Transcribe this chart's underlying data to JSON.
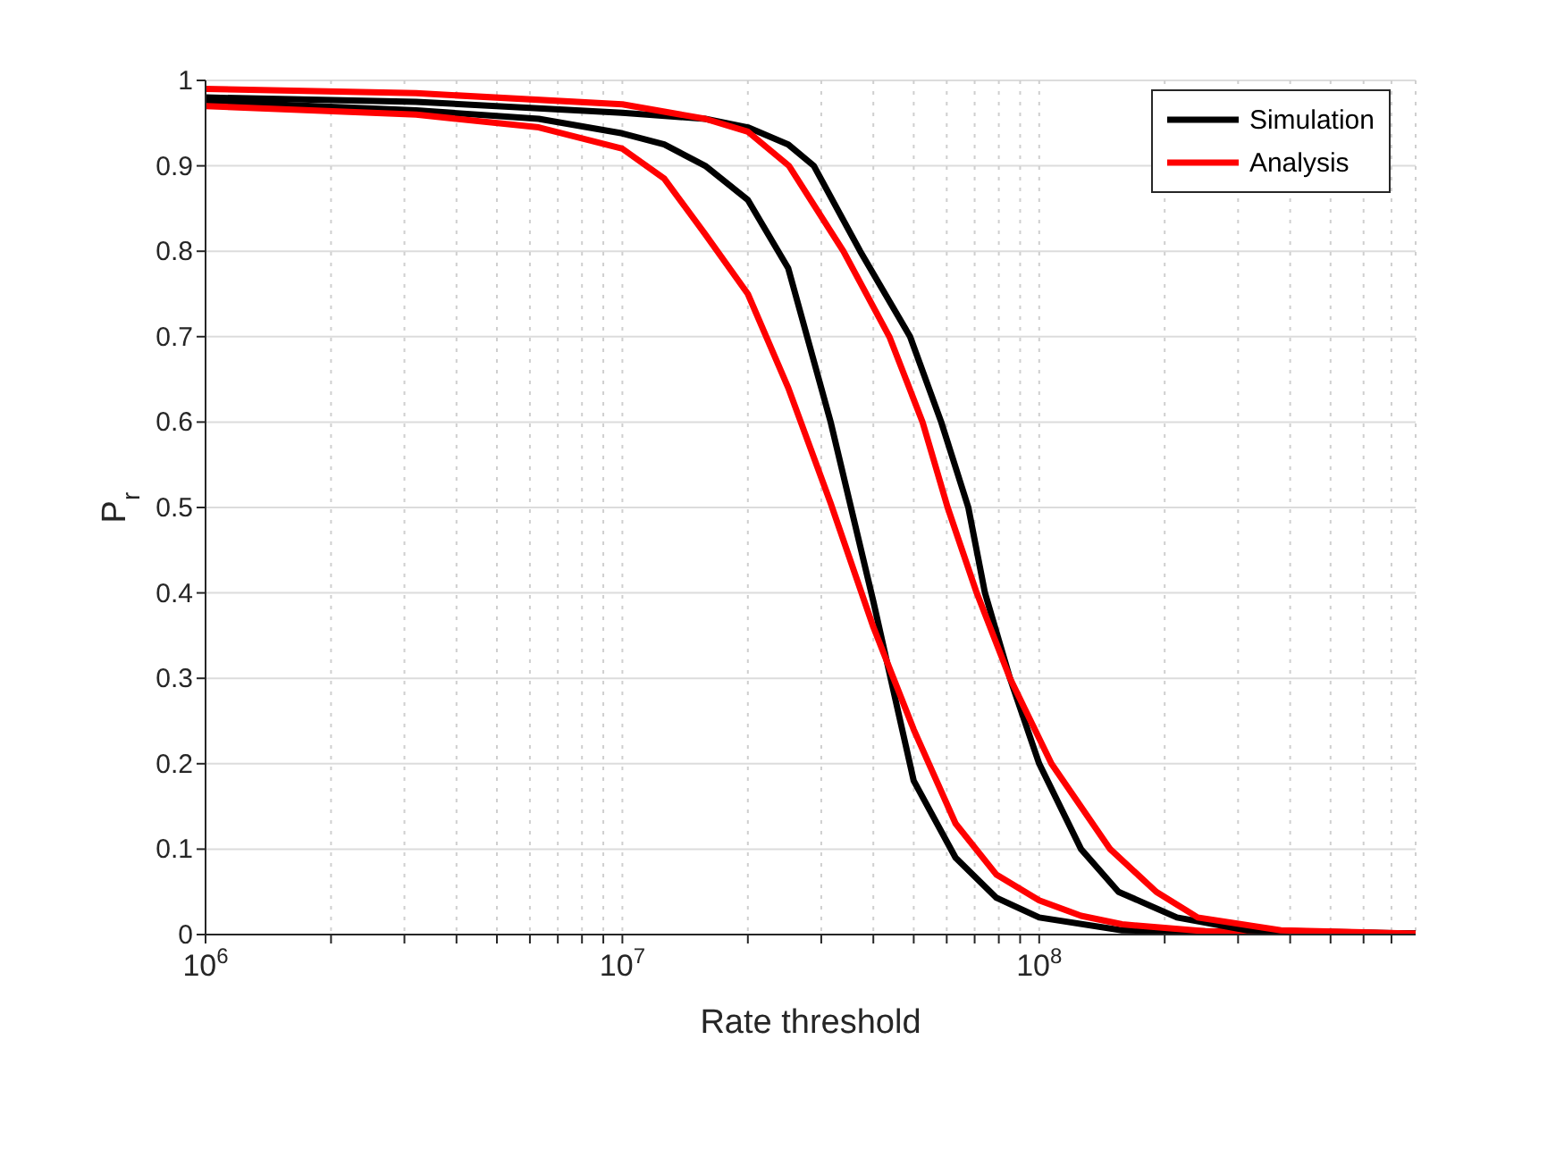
{
  "chart_data": {
    "type": "line",
    "xlabel": "Rate threshold",
    "ylabel": "P$_{r}$",
    "xlim": [
      1000000,
      800000000
    ],
    "ylim": [
      0,
      1
    ],
    "xticks": [
      {
        "value": 1000000,
        "label": "10$^{6}$"
      },
      {
        "value": 2000000,
        "label": null
      },
      {
        "value": 3000000,
        "label": null
      },
      {
        "value": 4000000,
        "label": null
      },
      {
        "value": 5000000,
        "label": null
      },
      {
        "value": 6000000,
        "label": null
      },
      {
        "value": 7000000,
        "label": null
      },
      {
        "value": 8000000,
        "label": null
      },
      {
        "value": 9000000,
        "label": null
      },
      {
        "value": 10000000,
        "label": "10$^{7}$"
      },
      {
        "value": 20000000,
        "label": null
      },
      {
        "value": 30000000,
        "label": null
      },
      {
        "value": 40000000,
        "label": null
      },
      {
        "value": 50000000,
        "label": null
      },
      {
        "value": 60000000,
        "label": null
      },
      {
        "value": 70000000,
        "label": null
      },
      {
        "value": 80000000,
        "label": null
      },
      {
        "value": 90000000,
        "label": null
      },
      {
        "value": 100000000,
        "label": "10$^{8}$"
      },
      {
        "value": 200000000,
        "label": null
      },
      {
        "value": 300000000,
        "label": null
      },
      {
        "value": 400000000,
        "label": null
      },
      {
        "value": 500000000,
        "label": null
      },
      {
        "value": 600000000,
        "label": null
      },
      {
        "value": 700000000,
        "label": null
      }
    ],
    "yticks": [
      0,
      0.1,
      0.2,
      0.3,
      0.4,
      0.5,
      0.6,
      0.7,
      0.8,
      0.9,
      1
    ],
    "log": "x",
    "grid": true,
    "legend": "top right",
    "marker": "none",
    "line_style": "solid",
    "series": [
      {
        "name": "Simulation",
        "color": "#000000",
        "x": [
          1000000,
          3200000,
          6300000,
          10000000,
          12600000,
          15800000,
          20000000,
          25000000,
          31600000,
          40000000,
          50000000,
          63000000,
          79000000,
          100000000,
          158000000,
          800000000
        ],
        "values": [
          0.975,
          0.965,
          0.955,
          0.938,
          0.925,
          0.9,
          0.86,
          0.78,
          0.6,
          0.39,
          0.18,
          0.09,
          0.043,
          0.02,
          0.005,
          0.001
        ]
      },
      {
        "name": "Analysis",
        "color": "#ff0000",
        "x": [
          1000000,
          3200000,
          6300000,
          10000000,
          12600000,
          15800000,
          20000000,
          25000000,
          31600000,
          40000000,
          50000000,
          63000000,
          79000000,
          100000000,
          126000000,
          158000000,
          250000000,
          800000000
        ],
        "values": [
          0.97,
          0.96,
          0.945,
          0.92,
          0.885,
          0.82,
          0.75,
          0.64,
          0.505,
          0.36,
          0.24,
          0.13,
          0.07,
          0.04,
          0.022,
          0.012,
          0.004,
          0.001
        ]
      },
      {
        "color": "#000000",
        "x": [
          1000000,
          3200000,
          10000000,
          15800000,
          20000000,
          25000000,
          28800000,
          37200000,
          49000000,
          58200000,
          67600000,
          74100000,
          85100000,
          100000000,
          126000000,
          155000000,
          214000000,
          316000000,
          800000000
        ],
        "values": [
          0.98,
          0.975,
          0.962,
          0.955,
          0.945,
          0.925,
          0.9,
          0.8,
          0.7,
          0.6,
          0.5,
          0.4,
          0.3,
          0.2,
          0.1,
          0.05,
          0.02,
          0.005,
          0.001
        ]
      },
      {
        "color": "#ff0000",
        "x": [
          1000000,
          3200000,
          10000000,
          15800000,
          20000000,
          25100000,
          33900000,
          43700000,
          52500000,
          60300000,
          70800000,
          85100000,
          107000000,
          148000000,
          191000000,
          240000000,
          380000000,
          800000000
        ],
        "values": [
          0.99,
          0.985,
          0.972,
          0.955,
          0.94,
          0.9,
          0.8,
          0.7,
          0.6,
          0.5,
          0.4,
          0.3,
          0.2,
          0.1,
          0.05,
          0.02,
          0.005,
          0.001
        ]
      }
    ]
  }
}
